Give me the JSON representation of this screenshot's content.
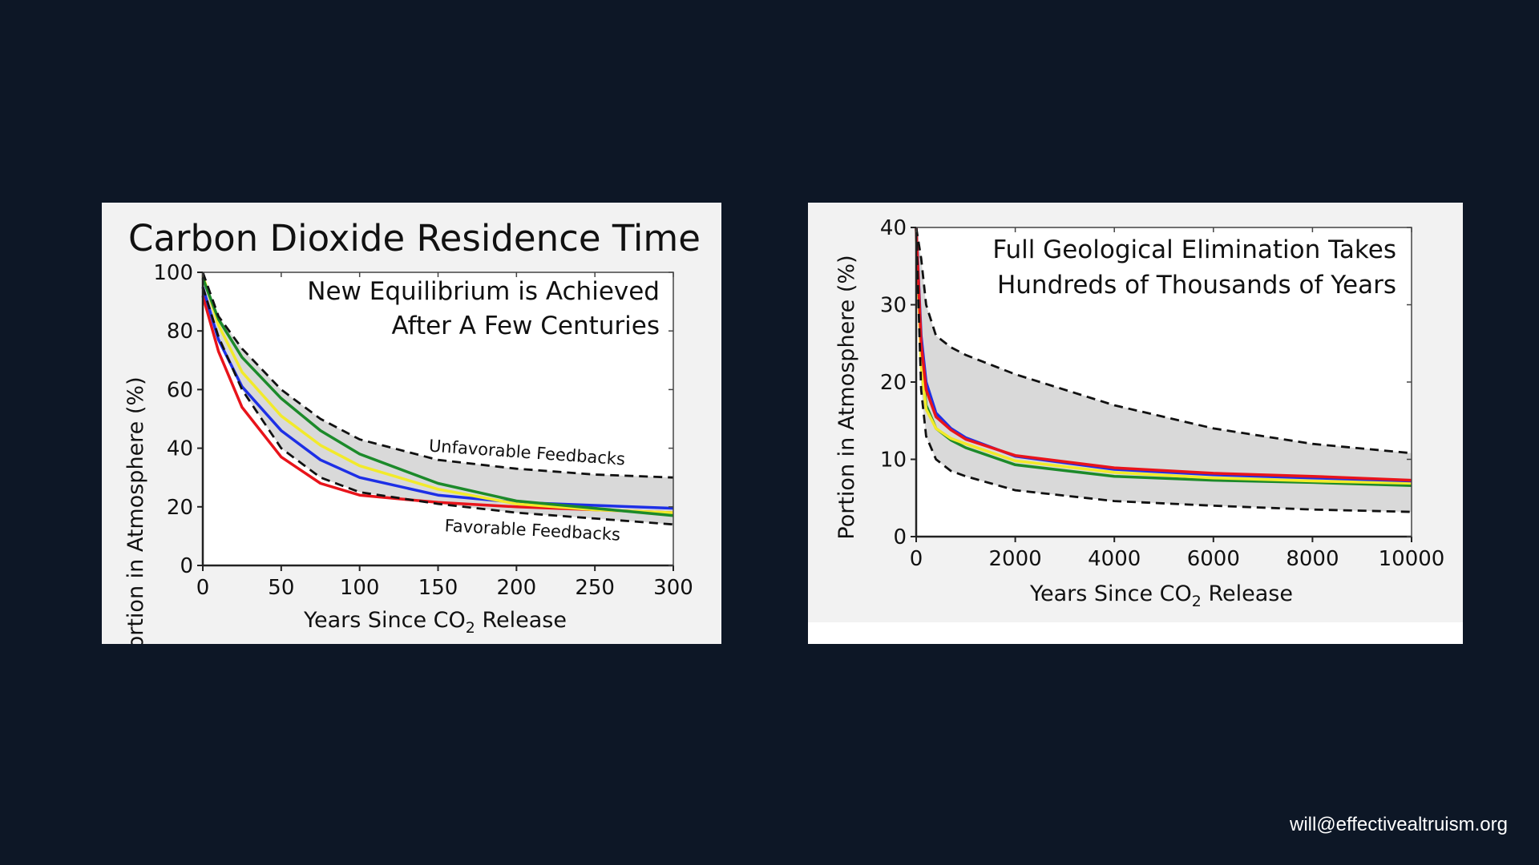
{
  "footer": {
    "email": "will@effectivealtruism.org"
  },
  "colors": {
    "background": "#0d1726",
    "panel": "#f2f2f2",
    "band": "#d9d9d9",
    "red": "#e8141b",
    "blue": "#1d2fe6",
    "yellow": "#f2ea2a",
    "green": "#1c8a2a"
  },
  "chart_data": [
    {
      "type": "line",
      "title": "Carbon Dioxide Residence Time",
      "annotation": [
        "New Equilibrium is Achieved",
        "After A Few Centuries"
      ],
      "xlabel": "Years Since CO",
      "xlabel_sub": "2",
      "xlabel_tail": " Release",
      "ylabel": "Portion in Atmosphere (%)",
      "xlim": [
        0,
        300
      ],
      "ylim": [
        0,
        100
      ],
      "xticks": [
        0,
        50,
        100,
        150,
        200,
        250,
        300
      ],
      "yticks": [
        0,
        20,
        40,
        60,
        80,
        100
      ],
      "band": {
        "upper_label": "Unfavorable Feedbacks",
        "lower_label": "Favorable Feedbacks",
        "x": [
          0,
          10,
          25,
          50,
          75,
          100,
          150,
          200,
          250,
          300
        ],
        "upper": [
          100,
          85,
          74,
          60,
          50,
          43,
          36,
          33,
          31,
          30
        ],
        "lower": [
          95,
          78,
          60,
          40,
          30,
          25,
          21,
          18,
          16,
          14
        ]
      },
      "series": [
        {
          "color": "red",
          "x": [
            0,
            10,
            25,
            50,
            75,
            100,
            150,
            200,
            250,
            300
          ],
          "y": [
            92,
            73,
            54,
            37,
            28,
            24,
            21.5,
            20,
            19,
            18
          ]
        },
        {
          "color": "blue",
          "x": [
            0,
            10,
            25,
            50,
            75,
            100,
            150,
            200,
            250,
            300
          ],
          "y": [
            95,
            77,
            61,
            46,
            36,
            30,
            24,
            21.5,
            20.5,
            19.5
          ]
        },
        {
          "color": "yellow",
          "x": [
            0,
            10,
            25,
            50,
            75,
            100,
            150,
            200,
            250,
            300
          ],
          "y": [
            99,
            82,
            66,
            51,
            41,
            34,
            26,
            21,
            19,
            18
          ]
        },
        {
          "color": "green",
          "x": [
            0,
            10,
            25,
            50,
            75,
            100,
            150,
            200,
            250,
            300
          ],
          "y": [
            98,
            84,
            71,
            57,
            46,
            38,
            28,
            22,
            19.5,
            17
          ]
        }
      ]
    },
    {
      "type": "line",
      "annotation": [
        "Full Geological Elimination Takes",
        "Hundreds of Thousands of Years"
      ],
      "xlabel": "Years Since CO",
      "xlabel_sub": "2",
      "xlabel_tail": " Release",
      "ylabel": "Portion in Atmosphere (%)",
      "xlim": [
        0,
        10000
      ],
      "ylim": [
        0,
        40
      ],
      "xticks": [
        0,
        2000,
        4000,
        6000,
        8000,
        10000
      ],
      "yticks": [
        0,
        10,
        20,
        30,
        40
      ],
      "band": {
        "x": [
          0,
          100,
          200,
          400,
          700,
          1000,
          2000,
          4000,
          6000,
          8000,
          10000
        ],
        "upper": [
          40,
          36,
          30,
          26,
          24.5,
          23.5,
          21,
          17,
          14,
          12,
          10.8
        ],
        "lower": [
          40,
          19,
          13,
          10,
          8.5,
          7.8,
          6,
          4.6,
          4,
          3.5,
          3.2
        ]
      },
      "series": [
        {
          "color": "green",
          "x": [
            0,
            100,
            200,
            400,
            700,
            1000,
            2000,
            4000,
            6000,
            8000,
            10000
          ],
          "y": [
            40,
            23,
            17,
            14,
            12.5,
            11.5,
            9.3,
            7.8,
            7.3,
            7,
            6.6
          ]
        },
        {
          "color": "yellow",
          "x": [
            0,
            100,
            200,
            400,
            700,
            1000,
            2000,
            4000,
            6000,
            8000,
            10000
          ],
          "y": [
            40,
            22,
            16.5,
            14,
            12.7,
            12,
            9.8,
            8.3,
            7.6,
            7.2,
            6.9
          ]
        },
        {
          "color": "blue",
          "x": [
            0,
            100,
            200,
            400,
            700,
            1000,
            2000,
            4000,
            6000,
            8000,
            10000
          ],
          "y": [
            40,
            26,
            20,
            16,
            14,
            12.8,
            10.4,
            8.7,
            8,
            7.6,
            7.2
          ]
        },
        {
          "color": "red",
          "x": [
            0,
            100,
            200,
            400,
            700,
            1000,
            2000,
            4000,
            6000,
            8000,
            10000
          ],
          "y": [
            40,
            25,
            19,
            15.5,
            13.8,
            12.6,
            10.5,
            8.9,
            8.2,
            7.8,
            7.3
          ]
        }
      ]
    }
  ]
}
